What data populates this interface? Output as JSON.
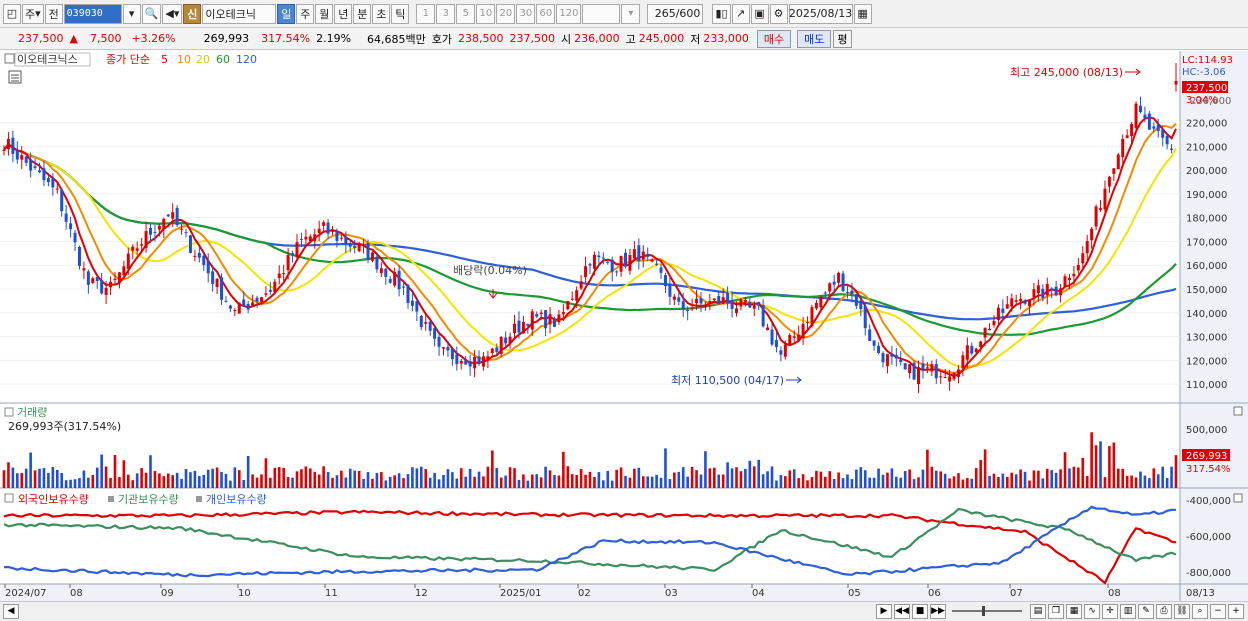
{
  "toolbar": {
    "period_label": "주",
    "prev_label": "전",
    "code": "039030",
    "shin_label": "신",
    "stock_name": "이오테크닉",
    "period_tabs": [
      "일",
      "주",
      "월",
      "년",
      "분",
      "초",
      "틱"
    ],
    "interval_buttons": [
      "1",
      "3",
      "5",
      "10",
      "20",
      "30",
      "60",
      "120"
    ],
    "count_display": "265/600",
    "date_display": "2025/08/13"
  },
  "quote": {
    "price": "237,500",
    "change_arrow": "▲",
    "change": "7,500",
    "change_pct": "+3.26%",
    "volume": "269,993",
    "volume_ratio": "317.54%",
    "turnover_pct": "2.19%",
    "amount": "64,685백만",
    "ask_label": "호가",
    "ask": "238,500",
    "bid": "237,500",
    "open_label": "시",
    "open": "236,000",
    "high_label": "고",
    "high": "245,000",
    "low_label": "저",
    "low": "233,000",
    "buy_label": "매수",
    "sell_label": "매도",
    "avg_label": "평"
  },
  "price_panel": {
    "name": "이오테크닉스",
    "type_label": "종가 단순",
    "ma_periods": [
      "5",
      "10",
      "20",
      "60",
      "120"
    ],
    "lc": "LC:114.93",
    "hc": "HC:-3.06",
    "current_tag": "237,500",
    "current_pct": "3.04%",
    "high_annotation": "최고 245,000 (08/13)",
    "low_annotation": "최저 110,500 (04/17)",
    "dividend_label": "배당락(0.04%)",
    "y_ticks": [
      "220,000",
      "210,000",
      "200,000",
      "190,000",
      "180,000",
      "170,000",
      "160,000",
      "150,000",
      "140,000",
      "130,000",
      "120,000",
      "110,000"
    ],
    "y_values": [
      220000,
      210000,
      200000,
      190000,
      180000,
      170000,
      160000,
      150000,
      140000,
      130000,
      120000,
      110000
    ],
    "y_hidden_tick": "230,000"
  },
  "volume_panel": {
    "title": "거래량",
    "current": "269,993주(317.54%)",
    "y_tick": "500,000",
    "tag": "269,993",
    "tag_pct": "317.54%"
  },
  "holding_panel": {
    "series_labels": [
      "외국인보유수량",
      "기관보유수량",
      "개인보유수량"
    ],
    "y_ticks": [
      "-400,000",
      "-600,000",
      "-800,000"
    ]
  },
  "x_axis": {
    "labels": [
      "2024/07",
      "08",
      "09",
      "10",
      "11",
      "12",
      "2025/01",
      "02",
      "03",
      "04",
      "05",
      "06",
      "07",
      "08"
    ],
    "right_label": "08/13"
  },
  "chart_data": {
    "type": "candlestick",
    "ylim": [
      105000,
      248000
    ],
    "last": {
      "open": 236000,
      "high": 245000,
      "low": 233000,
      "close": 237500
    },
    "high": {
      "value": 245000,
      "date": "08/13"
    },
    "low": {
      "value": 110500,
      "date": "04/17"
    }
  },
  "colors": {
    "up": "#e00000",
    "down": "#1f4fd8",
    "ma5": "#e00000",
    "ma10": "#f08c00",
    "ma20": "#f5e400",
    "ma60": "#1a9a30",
    "ma120": "#2d5fd8",
    "foreign": "#e00000",
    "institution": "#3a8f5c",
    "individual": "#2d5fd8",
    "background": "#ffffff",
    "axis_bg": "#f0f0f0"
  }
}
